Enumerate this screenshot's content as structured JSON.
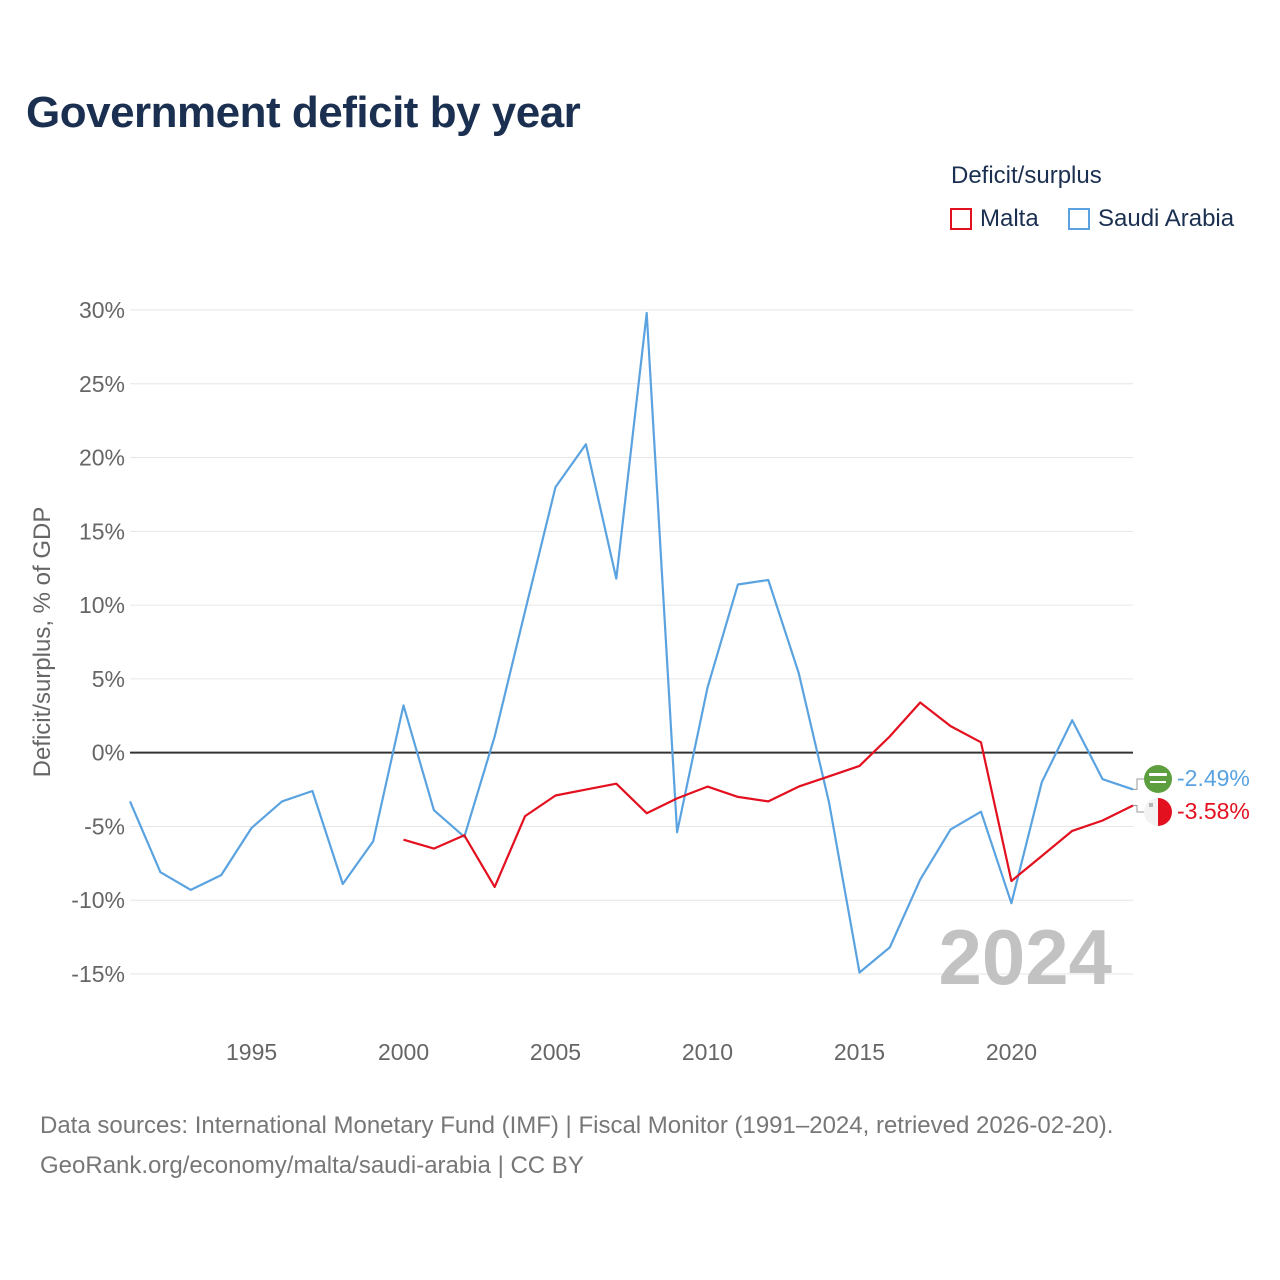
{
  "title": "Government deficit by year",
  "legend": {
    "title": "Deficit/surplus",
    "items": [
      {
        "name": "Malta",
        "color": "#e3101f"
      },
      {
        "name": "Saudi Arabia",
        "color": "#5aa3e0"
      }
    ]
  },
  "year_watermark": "2024",
  "end_labels": {
    "saudi": "-2.49%",
    "malta": "-3.58%"
  },
  "footer": {
    "line1": "Data sources: International Monetary Fund (IMF) | Fiscal Monitor (1991–2024, retrieved 2026-02-20).",
    "line2": "GeoRank.org/economy/malta/saudi-arabia | CC BY"
  },
  "chart_data": {
    "type": "line",
    "title": "Government deficit by year",
    "xlabel": "",
    "ylabel": "Deficit/surplus, % of GDP",
    "xlim": [
      1991,
      2024
    ],
    "ylim": [
      -15,
      30
    ],
    "x_ticks": [
      1995,
      2000,
      2005,
      2010,
      2015,
      2020
    ],
    "y_ticks": [
      30,
      25,
      20,
      15,
      10,
      5,
      0,
      -5,
      -10,
      -15
    ],
    "y_tick_labels": [
      "30%",
      "25%",
      "20%",
      "15%",
      "10%",
      "5%",
      "0%",
      "-5%",
      "-10%",
      "-15%"
    ],
    "series": [
      {
        "name": "Saudi Arabia",
        "color": "#5aa3e0",
        "x": [
          1991,
          1992,
          1993,
          1994,
          1995,
          1996,
          1997,
          1998,
          1999,
          2000,
          2001,
          2002,
          2003,
          2004,
          2005,
          2006,
          2007,
          2008,
          2009,
          2010,
          2011,
          2012,
          2013,
          2014,
          2015,
          2016,
          2017,
          2018,
          2019,
          2020,
          2021,
          2022,
          2023,
          2024
        ],
        "values": [
          -3.3,
          -8.1,
          -9.3,
          -8.3,
          -5.1,
          -3.3,
          -2.6,
          -8.9,
          -6.0,
          3.2,
          -3.9,
          -5.7,
          1.1,
          9.6,
          18.0,
          20.9,
          11.8,
          29.8,
          -5.4,
          4.4,
          11.4,
          11.7,
          5.4,
          -3.4,
          -14.9,
          -13.2,
          -8.6,
          -5.2,
          -4.0,
          -10.2,
          -2.0,
          2.2,
          -1.8,
          -2.49
        ]
      },
      {
        "name": "Malta",
        "color": "#e3101f",
        "x": [
          2000,
          2001,
          2002,
          2003,
          2004,
          2005,
          2006,
          2007,
          2008,
          2009,
          2010,
          2011,
          2012,
          2013,
          2014,
          2015,
          2016,
          2017,
          2018,
          2019,
          2020,
          2021,
          2022,
          2023,
          2024
        ],
        "values": [
          -5.9,
          -6.5,
          -5.6,
          -9.1,
          -4.3,
          -2.9,
          -2.5,
          -2.1,
          -4.1,
          -3.1,
          -2.3,
          -3.0,
          -3.3,
          -2.3,
          -1.6,
          -0.9,
          1.1,
          3.4,
          1.8,
          0.7,
          -8.7,
          -7.0,
          -5.3,
          -4.6,
          -3.58
        ]
      }
    ]
  }
}
